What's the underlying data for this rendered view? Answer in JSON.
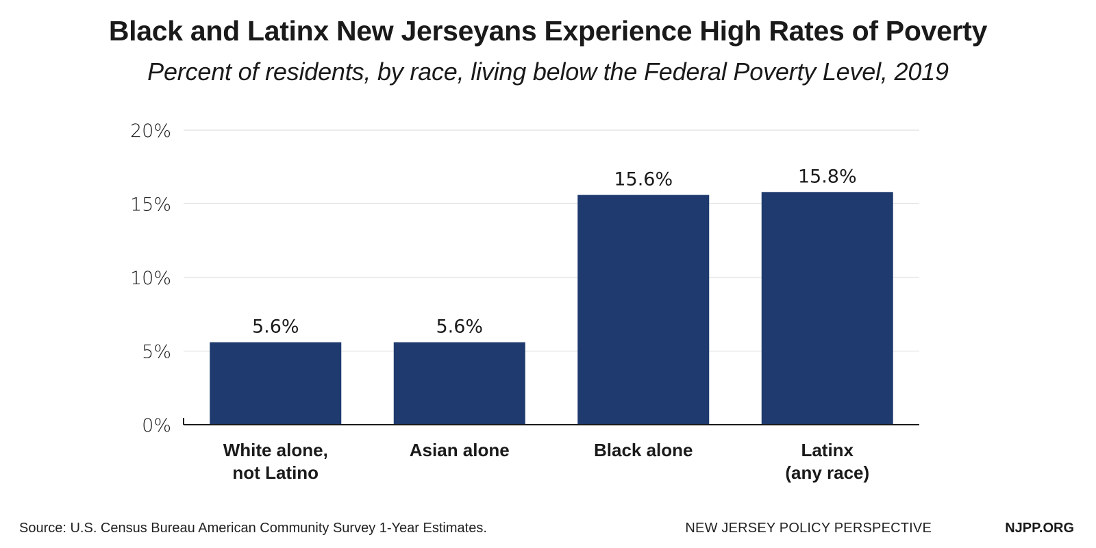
{
  "header": {
    "title": "Black and Latinx New Jerseyans Experience High Rates of Poverty",
    "subtitle": "Percent of residents, by race, living below the Federal Poverty Level, 2019"
  },
  "chart_data": {
    "type": "bar",
    "categories": [
      [
        "White alone,",
        "not Latino"
      ],
      [
        "Asian alone"
      ],
      [
        "Black alone"
      ],
      [
        "Latinx",
        "(any race)"
      ]
    ],
    "values": [
      5.6,
      5.6,
      15.6,
      15.8
    ],
    "data_labels": [
      "5.6%",
      "5.6%",
      "15.6%",
      "15.8%"
    ],
    "ylim": [
      0,
      20
    ],
    "yticks": [
      0,
      5,
      10,
      15,
      20
    ],
    "ytick_labels": [
      "0%",
      "5%",
      "10%",
      "15%",
      "20%"
    ],
    "xlabel": "",
    "ylabel": "",
    "grid": true,
    "bar_color": "#1e3a6e"
  },
  "footer": {
    "source": "Source: U.S. Census Bureau American Community Survey 1-Year Estimates.",
    "org": "NEW JERSEY POLICY PERSPECTIVE",
    "site": "NJPP.ORG"
  }
}
